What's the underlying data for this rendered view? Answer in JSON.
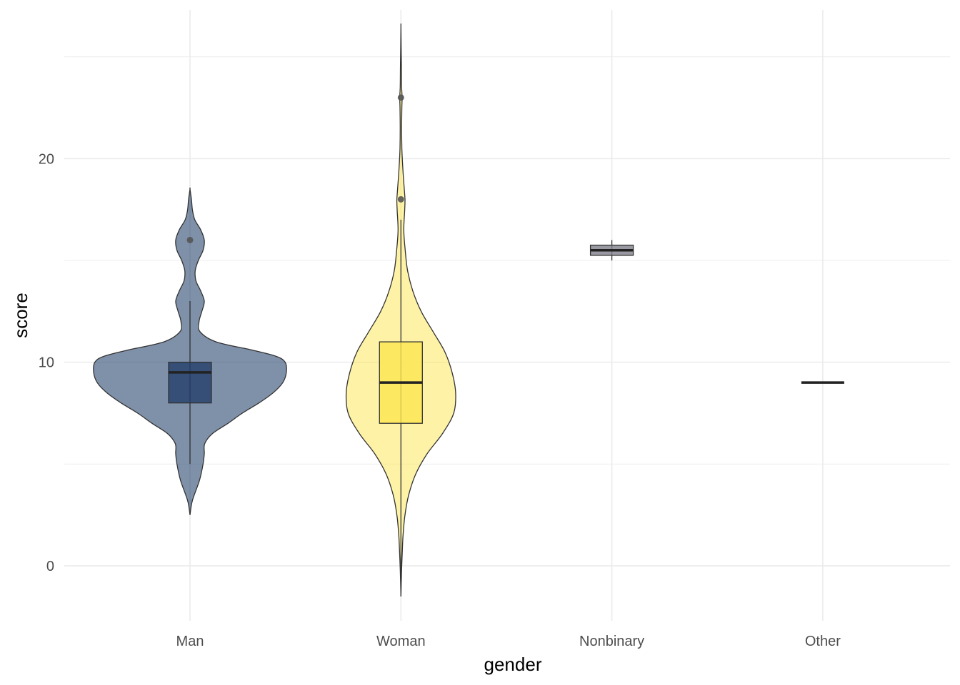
{
  "chart_data": {
    "type": "violin",
    "xlabel": "gender",
    "ylabel": "score",
    "categories": [
      "Man",
      "Woman",
      "Nonbinary",
      "Other"
    ],
    "ylim": [
      -2.7,
      27.3
    ],
    "yticks": [
      0,
      10,
      20
    ],
    "ytick_labels": [
      "0",
      "10",
      "20"
    ],
    "grid": true,
    "legend": "none",
    "colors": {
      "Man": "#233f6a",
      "Woman": "#fde650",
      "Nonbinary": "#7f7f8a",
      "Other": "#cbb85a",
      "grid": "#ebebeb",
      "outline": "#333333"
    },
    "violins": [
      {
        "category": "Man",
        "ymin": 2.5,
        "ymax": 18.5,
        "profile": [
          [
            2.5,
            0.0
          ],
          [
            3.2,
            0.1
          ],
          [
            4.2,
            0.4
          ],
          [
            5.0,
            0.55
          ],
          [
            5.5,
            0.6
          ],
          [
            6.0,
            0.62
          ],
          [
            6.5,
            0.95
          ],
          [
            7.0,
            1.6
          ],
          [
            7.5,
            2.2
          ],
          [
            8.0,
            2.9
          ],
          [
            8.5,
            3.5
          ],
          [
            9.0,
            3.9
          ],
          [
            9.5,
            4.05
          ],
          [
            10.0,
            4.0
          ],
          [
            10.3,
            3.6
          ],
          [
            10.6,
            2.6
          ],
          [
            11.0,
            1.1
          ],
          [
            11.5,
            0.42
          ],
          [
            12.0,
            0.38
          ],
          [
            12.5,
            0.5
          ],
          [
            13.0,
            0.6
          ],
          [
            13.5,
            0.45
          ],
          [
            14.0,
            0.25
          ],
          [
            14.5,
            0.22
          ],
          [
            15.0,
            0.35
          ],
          [
            15.5,
            0.55
          ],
          [
            16.0,
            0.6
          ],
          [
            16.5,
            0.45
          ],
          [
            17.0,
            0.2
          ],
          [
            17.5,
            0.1
          ],
          [
            18.0,
            0.06
          ],
          [
            18.5,
            0.0
          ]
        ],
        "box": {
          "lower_whisker": 5,
          "q1": 8,
          "median": 9.5,
          "q3": 10,
          "upper_whisker": 13
        },
        "outliers": [
          16
        ]
      },
      {
        "category": "Woman",
        "ymin": -1.5,
        "ymax": 26.5,
        "profile": [
          [
            -1.5,
            0.0
          ],
          [
            -0.5,
            0.02
          ],
          [
            0.5,
            0.05
          ],
          [
            1.5,
            0.09
          ],
          [
            2.5,
            0.17
          ],
          [
            3.5,
            0.33
          ],
          [
            4.5,
            0.62
          ],
          [
            5.5,
            1.1
          ],
          [
            6.5,
            1.75
          ],
          [
            7.5,
            2.22
          ],
          [
            8.5,
            2.3
          ],
          [
            9.5,
            2.15
          ],
          [
            10.5,
            1.85
          ],
          [
            11.5,
            1.35
          ],
          [
            12.5,
            0.85
          ],
          [
            13.5,
            0.5
          ],
          [
            14.5,
            0.28
          ],
          [
            15.5,
            0.18
          ],
          [
            16.5,
            0.12
          ],
          [
            17.5,
            0.16
          ],
          [
            18.0,
            0.17
          ],
          [
            18.5,
            0.14
          ],
          [
            19.5,
            0.08
          ],
          [
            20.5,
            0.04
          ],
          [
            21.5,
            0.03
          ],
          [
            22.5,
            0.04
          ],
          [
            23.0,
            0.05
          ],
          [
            23.5,
            0.03
          ],
          [
            24.5,
            0.02
          ],
          [
            25.5,
            0.01
          ],
          [
            26.5,
            0.0
          ]
        ],
        "box": {
          "lower_whisker": -1.5,
          "q1": 7,
          "median": 9,
          "q3": 11,
          "upper_whisker": 17
        },
        "outliers": [
          18,
          23
        ]
      },
      {
        "category": "Nonbinary",
        "ymin": 15,
        "ymax": 16,
        "profile": [],
        "box": {
          "lower_whisker": 15,
          "q1": 15.25,
          "median": 15.5,
          "q3": 15.75,
          "upper_whisker": 16
        },
        "outliers": []
      },
      {
        "category": "Other",
        "ymin": 9,
        "ymax": 9,
        "profile": [],
        "box": {
          "lower_whisker": 9,
          "q1": 9,
          "median": 9,
          "q3": 9,
          "upper_whisker": 9
        },
        "outliers": []
      }
    ]
  }
}
